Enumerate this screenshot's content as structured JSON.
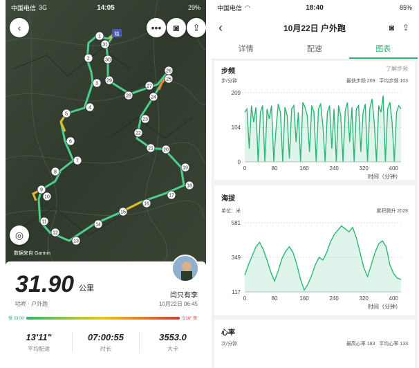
{
  "left_status": {
    "carrier": "中国电信",
    "network": "3G",
    "time": "14:05",
    "battery": "29%"
  },
  "right_status": {
    "carrier": "中国电信",
    "time": "18:40",
    "battery": "85%"
  },
  "map": {
    "attribution": "数据来自 Garmin",
    "start_label": "始",
    "markers": [
      "1",
      "2",
      "3",
      "4",
      "5",
      "6",
      "7",
      "8",
      "9",
      "10",
      "11",
      "12",
      "13",
      "14",
      "15",
      "16",
      "17",
      "18",
      "19",
      "20",
      "21",
      "22",
      "23",
      "24",
      "25",
      "26",
      "27",
      "28",
      "29",
      "30",
      "31"
    ]
  },
  "summary": {
    "distance": "31.90",
    "unit": "公里",
    "activity": "咕咚 · 户外跑",
    "user": "闫只有李",
    "datetime": "10月22日 06:45",
    "pace_slow": "慢 33'06\"",
    "pace_fast": "5'16\" 快",
    "stats": [
      {
        "value": "13'11\"",
        "label": "平均配速"
      },
      {
        "value": "07:00:55",
        "label": "时长"
      },
      {
        "value": "3553.0",
        "label": "大卡"
      }
    ]
  },
  "header": {
    "title": "10月22日 户外跑"
  },
  "tabs": [
    "详情",
    "配速",
    "图表"
  ],
  "cadence": {
    "title": "步频",
    "link": "了解步频",
    "unit": "步/分钟",
    "max_text": "最快步频 209",
    "avg_text": "平均步频 103"
  },
  "elevation": {
    "title": "海拔",
    "unit": "单位：米",
    "climb_text": "累积爬升 2028"
  },
  "heart": {
    "title": "心率",
    "unit": "次/分钟",
    "max_text": "最高心率 183",
    "avg_text": "平均心率 133"
  },
  "chart_data": [
    {
      "type": "area",
      "title": "步频",
      "xlabel": "时间（分钟）",
      "ylabel": "步/分钟",
      "xticks": [
        0,
        80,
        160,
        240,
        320,
        400
      ],
      "yticks": [
        0,
        104,
        209
      ],
      "xlim": [
        0,
        420
      ],
      "ylim": [
        0,
        209
      ],
      "x": [
        0,
        6,
        12,
        18,
        24,
        30,
        36,
        42,
        48,
        54,
        60,
        66,
        72,
        78,
        84,
        90,
        96,
        102,
        108,
        114,
        120,
        126,
        132,
        138,
        144,
        150,
        156,
        162,
        168,
        174,
        180,
        186,
        192,
        198,
        204,
        210,
        216,
        222,
        228,
        234,
        240,
        246,
        252,
        258,
        264,
        270,
        276,
        282,
        288,
        294,
        300,
        306,
        312,
        318,
        324,
        330,
        336,
        342,
        348,
        354,
        360,
        366,
        372,
        378,
        384,
        390,
        396,
        402,
        408,
        414,
        420
      ],
      "values": [
        150,
        160,
        40,
        170,
        120,
        165,
        0,
        150,
        170,
        0,
        160,
        130,
        170,
        0,
        100,
        175,
        150,
        0,
        165,
        140,
        10,
        160,
        170,
        60,
        150,
        0,
        180,
        165,
        140,
        30,
        170,
        150,
        0,
        160,
        175,
        110,
        0,
        150,
        170,
        40,
        160,
        0,
        170,
        140,
        0,
        155,
        180,
        60,
        165,
        0,
        160,
        170,
        30,
        150,
        175,
        0,
        160,
        190,
        120,
        0,
        170,
        150,
        200,
        0,
        160,
        180,
        120,
        0,
        150,
        170,
        160
      ]
    },
    {
      "type": "area",
      "title": "海拔",
      "xlabel": "时间（分钟）",
      "ylabel": "米",
      "xticks": [
        0,
        80,
        160,
        240,
        320,
        400
      ],
      "yticks": [
        117,
        349,
        581
      ],
      "xlim": [
        0,
        420
      ],
      "ylim": [
        117,
        581
      ],
      "x": [
        0,
        10,
        20,
        30,
        40,
        50,
        60,
        70,
        80,
        90,
        100,
        110,
        120,
        130,
        140,
        150,
        160,
        170,
        180,
        190,
        200,
        210,
        220,
        230,
        240,
        250,
        260,
        270,
        280,
        290,
        300,
        310,
        320,
        330,
        340,
        350,
        360,
        370,
        380,
        390,
        400,
        410,
        420
      ],
      "values": [
        230,
        300,
        360,
        420,
        450,
        400,
        330,
        250,
        190,
        260,
        340,
        390,
        420,
        380,
        300,
        200,
        130,
        170,
        230,
        300,
        350,
        330,
        380,
        450,
        500,
        530,
        560,
        540,
        520,
        550,
        480,
        380,
        280,
        220,
        300,
        380,
        440,
        460,
        420,
        300,
        240,
        210,
        200
      ]
    }
  ]
}
